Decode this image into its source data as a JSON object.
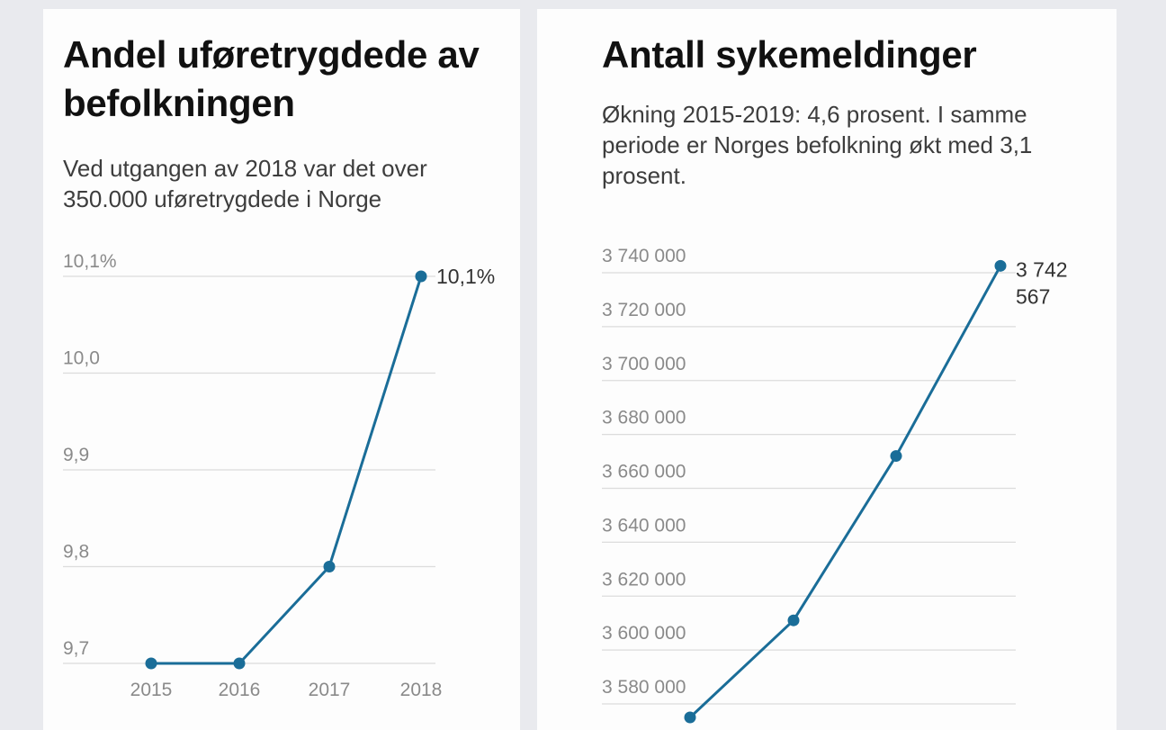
{
  "chart_data": [
    {
      "type": "line",
      "title": "Andel uføretrygdede av befolkningen",
      "subtitle": "Ved utgangen av 2018 var det over 350.000 uføretrygdede i Norge",
      "categories": [
        "2015",
        "2016",
        "2017",
        "2018"
      ],
      "values": [
        9.7,
        9.7,
        9.8,
        10.1
      ],
      "y_ticks": [
        {
          "value": 9.7,
          "label": "9,7"
        },
        {
          "value": 9.8,
          "label": "9,8"
        },
        {
          "value": 9.9,
          "label": "9,9"
        },
        {
          "value": 10.0,
          "label": "10,0"
        },
        {
          "value": 10.1,
          "label": "10,1%"
        }
      ],
      "ylim": [
        9.7,
        10.1
      ],
      "end_label": "10,1%",
      "grid": true,
      "line_color": "#1a6d98"
    },
    {
      "type": "line",
      "title": "Antall sykemeldinger",
      "subtitle": "Økning 2015-2019: 4,6 prosent. I samme periode er Norges befolkning økt med 3,1 prosent.",
      "values": [
        3575000,
        3611000,
        3672000,
        3742567
      ],
      "y_ticks": [
        {
          "value": 3580000,
          "label": "3 580 000"
        },
        {
          "value": 3600000,
          "label": "3 600 000"
        },
        {
          "value": 3620000,
          "label": "3 620 000"
        },
        {
          "value": 3640000,
          "label": "3 640 000"
        },
        {
          "value": 3660000,
          "label": "3 660 000"
        },
        {
          "value": 3680000,
          "label": "3 680 000"
        },
        {
          "value": 3700000,
          "label": "3 700 000"
        },
        {
          "value": 3720000,
          "label": "3 720 000"
        },
        {
          "value": 3740000,
          "label": "3 740 000"
        }
      ],
      "end_label": [
        "3 742",
        "567"
      ],
      "grid": true,
      "line_color": "#1a6d98"
    }
  ]
}
